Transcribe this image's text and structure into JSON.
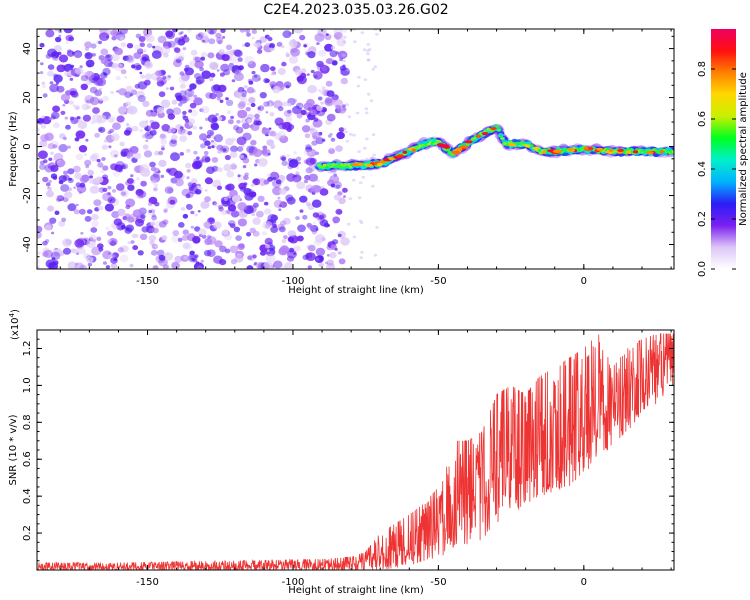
{
  "title": "C2E4.2023.035.03.26.G02",
  "chart_data": [
    {
      "type": "heatmap",
      "name": "spectrogram",
      "xlabel": "Height of straight line (km)",
      "ylabel": "Frequency (Hz)",
      "xlim": [
        -188,
        31
      ],
      "ylim": [
        -50,
        48
      ],
      "xticks": [
        -150,
        -100,
        -50,
        0
      ],
      "yticks": [
        -40,
        -20,
        0,
        20,
        40
      ],
      "noise_region": {
        "x": [
          -188,
          -80
        ],
        "y": [
          -50,
          48
        ]
      },
      "signal_trace": [
        {
          "x": -91,
          "f": -8
        },
        {
          "x": -80,
          "f": -8
        },
        {
          "x": -70,
          "f": -7
        },
        {
          "x": -62,
          "f": -3
        },
        {
          "x": -55,
          "f": 1
        },
        {
          "x": -50,
          "f": 2
        },
        {
          "x": -45,
          "f": -3
        },
        {
          "x": -38,
          "f": 3
        },
        {
          "x": -30,
          "f": 8
        },
        {
          "x": -27,
          "f": 1
        },
        {
          "x": -20,
          "f": 1
        },
        {
          "x": -15,
          "f": -2
        },
        {
          "x": -10,
          "f": -2
        },
        {
          "x": 0,
          "f": -1
        },
        {
          "x": 10,
          "f": -2
        },
        {
          "x": 20,
          "f": -2
        },
        {
          "x": 31,
          "f": -2
        }
      ],
      "colorbar": {
        "label": "Normalized spectral amplitude",
        "range": [
          0,
          0.96
        ],
        "ticks": [
          "0.0",
          "0.2",
          "0.4",
          "0.6",
          "0.8"
        ],
        "ticks_values": [
          0,
          0.2,
          0.4,
          0.6,
          0.8
        ],
        "colors": [
          "#ffffff",
          "#dcc6f7",
          "#7a1ff0",
          "#2a1ef5",
          "#00b4ff",
          "#00f0c8",
          "#00ff20",
          "#c8f000",
          "#ffd800",
          "#ff8000",
          "#ff1010",
          "#f00060"
        ]
      }
    },
    {
      "type": "line",
      "name": "snr",
      "xlabel": "Height of straight line (km)",
      "ylabel": "SNR (10 * v/v)",
      "multiplier": "(x10",
      "multiplier_exp": "4",
      "multiplier_close": ")",
      "xlim": [
        -188,
        31
      ],
      "ylim": [
        0,
        1.3
      ],
      "xticks": [
        -150,
        -100,
        -50,
        0
      ],
      "yticks": [
        0.2,
        0.4,
        0.6,
        0.8,
        1.0,
        1.2
      ],
      "ytick_labels": [
        "0.2",
        "0.4",
        "0.6",
        "0.8",
        "1.0",
        "1.2"
      ],
      "color": "#ee3333",
      "series": [
        {
          "x": [
            -188,
            -160,
            -120,
            -90,
            -80,
            -75,
            -70,
            -65,
            -60,
            -55,
            -50,
            -45,
            -40,
            -35,
            -30,
            -25,
            -20,
            -15,
            -10,
            -5,
            0,
            5,
            10,
            15,
            20,
            25,
            31
          ],
          "envelope_low": [
            0.0,
            0.0,
            0.0,
            0.0,
            0.0,
            0.0,
            0.0,
            0.01,
            0.02,
            0.05,
            0.07,
            0.1,
            0.14,
            0.16,
            0.25,
            0.3,
            0.35,
            0.4,
            0.42,
            0.45,
            0.52,
            0.6,
            0.68,
            0.75,
            0.85,
            0.9,
            1.0
          ],
          "envelope_high": [
            0.04,
            0.04,
            0.05,
            0.06,
            0.07,
            0.1,
            0.2,
            0.25,
            0.3,
            0.36,
            0.45,
            0.7,
            0.7,
            0.75,
            0.95,
            1.0,
            0.95,
            1.05,
            1.1,
            1.15,
            1.2,
            1.28,
            1.1,
            1.2,
            1.25,
            1.28,
            1.28
          ]
        }
      ]
    }
  ]
}
